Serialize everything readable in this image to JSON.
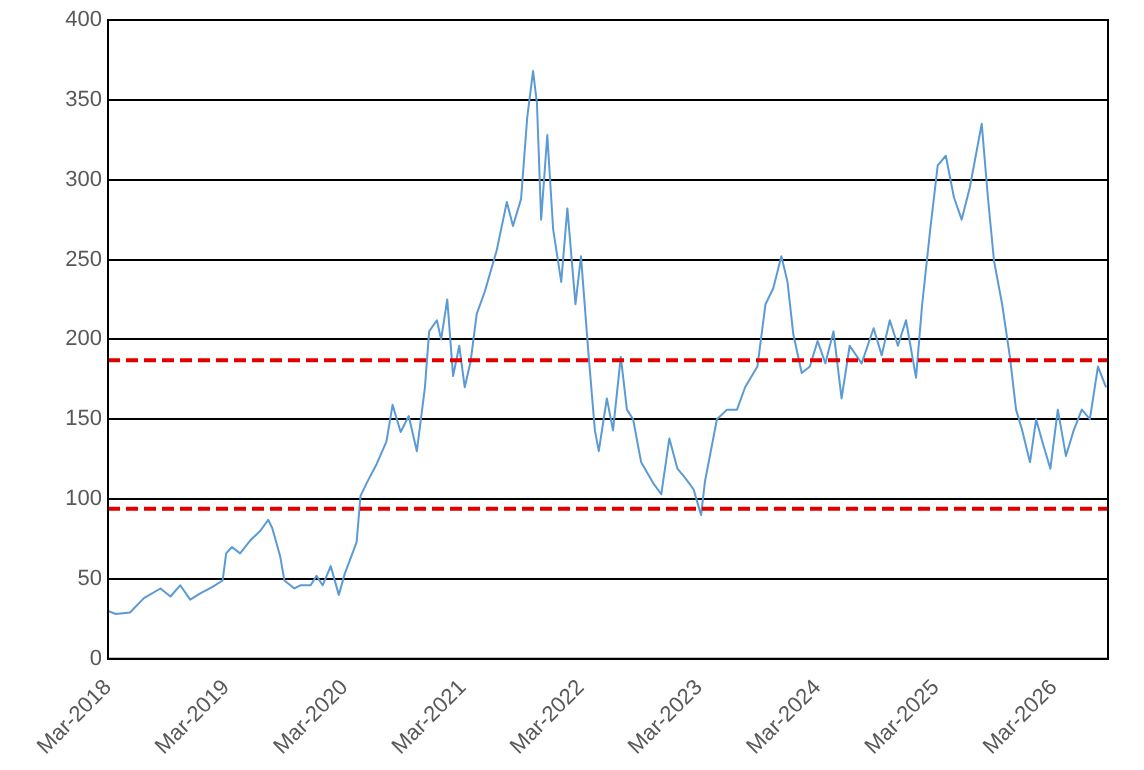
{
  "chart_data": {
    "type": "line",
    "x": [
      "2018-03-01",
      "2018-03-25",
      "2018-05-08",
      "2018-06-20",
      "2018-08-10",
      "2018-09-10",
      "2018-10-10",
      "2018-11-10",
      "2018-12-11",
      "2019-01-18",
      "2019-02-18",
      "2019-03-01",
      "2019-03-19",
      "2019-04-13",
      "2019-05-14",
      "2019-06-14",
      "2019-07-09",
      "2019-07-21",
      "2019-08-15",
      "2019-08-28",
      "2019-09-28",
      "2019-10-16",
      "2019-11-17",
      "2019-12-05",
      "2019-12-24",
      "2020-01-18",
      "2020-02-12",
      "2020-03-01",
      "2020-04-07",
      "2020-04-19",
      "2020-05-08",
      "2020-06-08",
      "2020-07-08",
      "2020-07-27",
      "2020-08-21",
      "2020-09-15",
      "2020-10-10",
      "2020-11-04",
      "2020-11-17",
      "2020-12-11",
      "2020-12-24",
      "2021-01-12",
      "2021-01-30",
      "2021-02-18",
      "2021-03-07",
      "2021-03-25",
      "2021-04-13",
      "2021-05-08",
      "2021-06-14",
      "2021-07-15",
      "2021-08-03",
      "2021-08-28",
      "2021-09-16",
      "2021-10-04",
      "2021-10-16",
      "2021-10-29",
      "2021-11-17",
      "2021-12-05",
      "2021-12-30",
      "2022-01-18",
      "2022-02-12",
      "2022-03-01",
      "2022-03-25",
      "2022-04-13",
      "2022-04-25",
      "2022-05-20",
      "2022-06-08",
      "2022-07-02",
      "2022-07-21",
      "2022-08-09",
      "2022-09-03",
      "2022-10-10",
      "2022-11-04",
      "2022-11-29",
      "2022-12-24",
      "2023-01-18",
      "2023-02-12",
      "2023-03-07",
      "2023-03-19",
      "2023-04-25",
      "2023-05-26",
      "2023-06-26",
      "2023-07-21",
      "2023-08-28",
      "2023-09-22",
      "2023-10-16",
      "2023-11-10",
      "2023-11-29",
      "2023-12-17",
      "2024-01-12",
      "2024-02-06",
      "2024-03-01",
      "2024-03-25",
      "2024-04-19",
      "2024-05-14",
      "2024-06-08",
      "2024-07-15",
      "2024-08-21",
      "2024-09-15",
      "2024-10-10",
      "2024-11-04",
      "2024-11-29",
      "2024-12-30",
      "2025-01-18",
      "2025-02-12",
      "2025-03-07",
      "2025-04-01",
      "2025-04-26",
      "2025-05-20",
      "2025-06-14",
      "2025-07-09",
      "2025-07-21",
      "2025-08-09",
      "2025-08-28",
      "2025-09-22",
      "2025-10-16",
      "2025-11-04",
      "2025-11-23",
      "2025-12-17",
      "2026-01-05",
      "2026-01-24",
      "2026-02-18",
      "2026-03-13",
      "2026-04-07",
      "2026-05-01",
      "2026-05-26",
      "2026-06-20",
      "2026-07-15",
      "2026-08-09"
    ],
    "series": [
      {
        "color": "#5b9bd5",
        "values": [
          30,
          28,
          29,
          38,
          44,
          39,
          46,
          37,
          41,
          45,
          49,
          66,
          70,
          66,
          74,
          80,
          87,
          82,
          64,
          49,
          44,
          46,
          46,
          52,
          46,
          58,
          40,
          53,
          73,
          102,
          110,
          122,
          136,
          159,
          142,
          152,
          130,
          170,
          205,
          212,
          200,
          225,
          177,
          196,
          170,
          186,
          216,
          230,
          256,
          286,
          271,
          288,
          339,
          368,
          348,
          275,
          328,
          269,
          236,
          282,
          222,
          252,
          189,
          143,
          130,
          163,
          143,
          189,
          156,
          150,
          123,
          110,
          103,
          138,
          119,
          113,
          106,
          90,
          111,
          150,
          156,
          156,
          170,
          183,
          222,
          232,
          252,
          236,
          203,
          179,
          183,
          199,
          185,
          205,
          163,
          196,
          185,
          207,
          190,
          212,
          196,
          212,
          176,
          222,
          269,
          309,
          315,
          289,
          275,
          295,
          322,
          335,
          289,
          249,
          222,
          189,
          156,
          143,
          123,
          150,
          136,
          119,
          156,
          127,
          143,
          156,
          150,
          183,
          170
        ]
      }
    ],
    "xlim": [
      "2018-03-01",
      "2026-08-15"
    ],
    "xticks": [
      {
        "value": "2018-03-01",
        "label": "Mar-2018"
      },
      {
        "value": "2019-03-01",
        "label": "Mar-2019"
      },
      {
        "value": "2020-03-01",
        "label": "Mar-2020"
      },
      {
        "value": "2021-03-01",
        "label": "Mar-2021"
      },
      {
        "value": "2022-03-01",
        "label": "Mar-2022"
      },
      {
        "value": "2023-03-01",
        "label": "Mar-2023"
      },
      {
        "value": "2024-03-01",
        "label": "Mar-2024"
      },
      {
        "value": "2025-03-01",
        "label": "Mar-2025"
      },
      {
        "value": "2026-03-01",
        "label": "Mar-2026"
      }
    ],
    "ylim": [
      0,
      400
    ],
    "yticks": [
      0,
      50,
      100,
      150,
      200,
      250,
      300,
      350,
      400
    ],
    "grid": "y",
    "legend": false,
    "marker": "none",
    "line_style": "solid",
    "ref_lines": [
      {
        "axis": "y",
        "value": 187,
        "color": "#e00000",
        "line_style": "dashed"
      },
      {
        "axis": "y",
        "value": 94,
        "color": "#e00000",
        "line_style": "dashed"
      }
    ]
  }
}
